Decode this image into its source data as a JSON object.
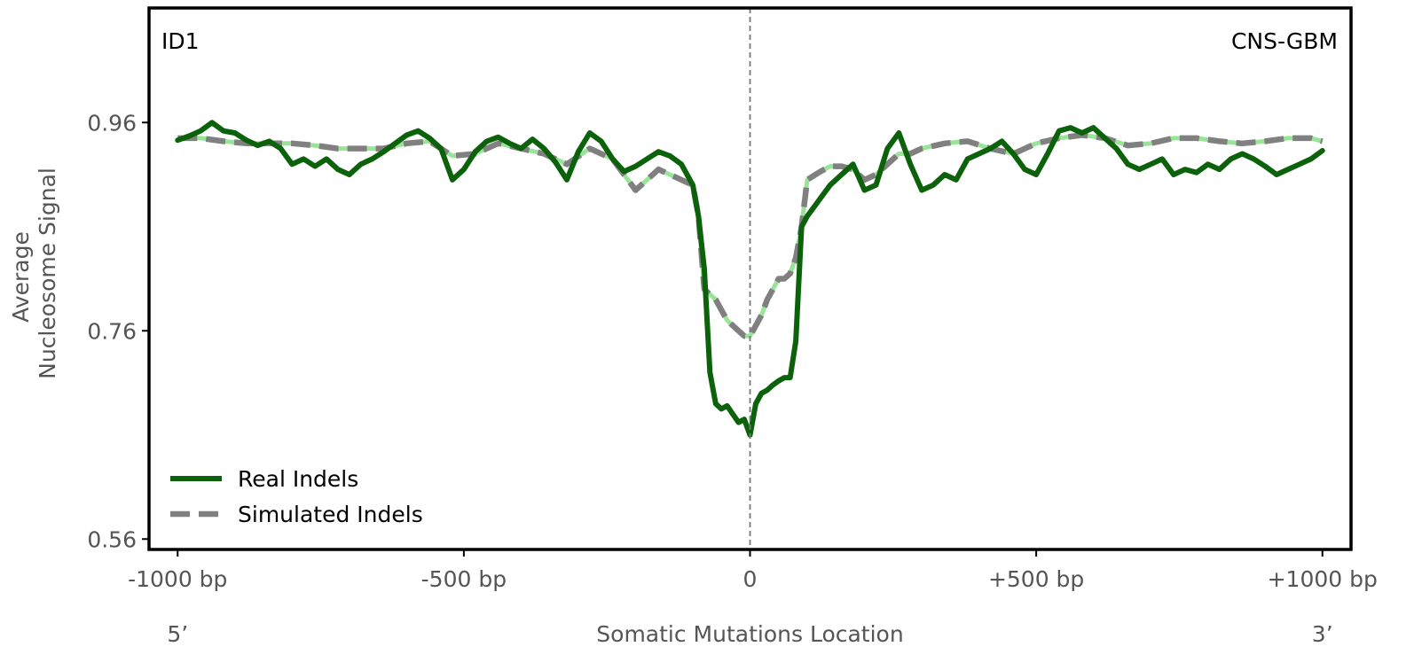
{
  "chart_data": {
    "type": "line",
    "corner_label_left": "ID1",
    "corner_label_right": "CNS-GBM",
    "ylabel_lines": [
      "Average",
      "Nucleosome Signal"
    ],
    "xlabel": "Somatic Mutations Location",
    "strand_left": "5’",
    "strand_right": "3’",
    "xlim": [
      -1050,
      1050
    ],
    "ylim": [
      0.55,
      1.07
    ],
    "x_ticks": [
      -1000,
      -500,
      0,
      500,
      1000
    ],
    "x_tick_labels": [
      "-1000 bp",
      "-500 bp",
      "0",
      "+500 bp",
      "+1000 bp"
    ],
    "y_ticks": [
      0.56,
      0.76,
      0.96
    ],
    "y_tick_labels": [
      "0.56",
      "0.76",
      "0.96"
    ],
    "vline_x": 0,
    "legend_position": "lower-left",
    "grid": false,
    "series": [
      {
        "name": "Real Indels",
        "color": "#0b620b",
        "style": "solid",
        "x": [
          -1000,
          -980,
          -960,
          -940,
          -920,
          -900,
          -880,
          -860,
          -840,
          -820,
          -800,
          -780,
          -760,
          -740,
          -720,
          -700,
          -680,
          -660,
          -640,
          -620,
          -600,
          -580,
          -560,
          -540,
          -520,
          -500,
          -480,
          -460,
          -440,
          -420,
          -400,
          -380,
          -360,
          -340,
          -320,
          -300,
          -280,
          -260,
          -240,
          -220,
          -200,
          -180,
          -160,
          -140,
          -120,
          -100,
          -90,
          -80,
          -70,
          -60,
          -50,
          -40,
          -30,
          -20,
          -10,
          0,
          10,
          20,
          30,
          40,
          50,
          60,
          70,
          80,
          90,
          100,
          120,
          140,
          160,
          180,
          200,
          220,
          240,
          260,
          280,
          300,
          320,
          340,
          360,
          380,
          400,
          420,
          440,
          460,
          480,
          500,
          520,
          540,
          560,
          580,
          600,
          620,
          640,
          660,
          680,
          700,
          720,
          740,
          760,
          780,
          800,
          820,
          840,
          860,
          880,
          900,
          920,
          940,
          960,
          980,
          1000
        ],
        "values": [
          0.943,
          0.947,
          0.952,
          0.96,
          0.952,
          0.95,
          0.943,
          0.938,
          0.942,
          0.935,
          0.92,
          0.925,
          0.918,
          0.925,
          0.915,
          0.91,
          0.92,
          0.925,
          0.932,
          0.94,
          0.948,
          0.952,
          0.945,
          0.935,
          0.905,
          0.915,
          0.932,
          0.942,
          0.946,
          0.94,
          0.935,
          0.944,
          0.935,
          0.922,
          0.905,
          0.932,
          0.95,
          0.942,
          0.925,
          0.913,
          0.918,
          0.925,
          0.932,
          0.928,
          0.92,
          0.9,
          0.87,
          0.82,
          0.72,
          0.69,
          0.685,
          0.688,
          0.68,
          0.672,
          0.675,
          0.66,
          0.69,
          0.7,
          0.703,
          0.708,
          0.712,
          0.715,
          0.715,
          0.75,
          0.86,
          0.87,
          0.885,
          0.9,
          0.91,
          0.92,
          0.895,
          0.9,
          0.935,
          0.95,
          0.92,
          0.895,
          0.9,
          0.91,
          0.905,
          0.925,
          0.93,
          0.935,
          0.942,
          0.93,
          0.915,
          0.91,
          0.93,
          0.952,
          0.955,
          0.95,
          0.955,
          0.945,
          0.935,
          0.92,
          0.915,
          0.92,
          0.925,
          0.91,
          0.915,
          0.912,
          0.92,
          0.915,
          0.925,
          0.93,
          0.925,
          0.918,
          0.91,
          0.915,
          0.92,
          0.925,
          0.933
        ]
      },
      {
        "name": "Simulated Indels",
        "color": "#808080",
        "dash_accent": "#98e598",
        "style": "dashed",
        "x": [
          -1000,
          -960,
          -920,
          -880,
          -840,
          -800,
          -760,
          -720,
          -680,
          -640,
          -600,
          -560,
          -520,
          -480,
          -440,
          -400,
          -360,
          -320,
          -280,
          -240,
          -200,
          -180,
          -160,
          -140,
          -120,
          -100,
          -90,
          -80,
          -70,
          -60,
          -50,
          -40,
          -30,
          -20,
          -10,
          0,
          10,
          20,
          30,
          40,
          50,
          60,
          70,
          80,
          90,
          100,
          120,
          140,
          160,
          180,
          200,
          220,
          240,
          260,
          280,
          300,
          340,
          380,
          420,
          460,
          500,
          540,
          580,
          620,
          660,
          700,
          740,
          780,
          820,
          860,
          900,
          940,
          980,
          1000
        ],
        "values": [
          0.945,
          0.945,
          0.942,
          0.94,
          0.94,
          0.94,
          0.938,
          0.935,
          0.935,
          0.935,
          0.94,
          0.942,
          0.928,
          0.93,
          0.94,
          0.935,
          0.93,
          0.92,
          0.935,
          0.925,
          0.895,
          0.905,
          0.915,
          0.91,
          0.905,
          0.9,
          0.87,
          0.8,
          0.795,
          0.79,
          0.78,
          0.77,
          0.765,
          0.76,
          0.755,
          0.755,
          0.765,
          0.775,
          0.79,
          0.8,
          0.81,
          0.81,
          0.815,
          0.83,
          0.86,
          0.905,
          0.912,
          0.918,
          0.918,
          0.915,
          0.905,
          0.91,
          0.92,
          0.93,
          0.93,
          0.935,
          0.94,
          0.942,
          0.935,
          0.93,
          0.94,
          0.945,
          0.948,
          0.945,
          0.938,
          0.94,
          0.945,
          0.945,
          0.942,
          0.94,
          0.942,
          0.945,
          0.945,
          0.942
        ]
      }
    ]
  }
}
